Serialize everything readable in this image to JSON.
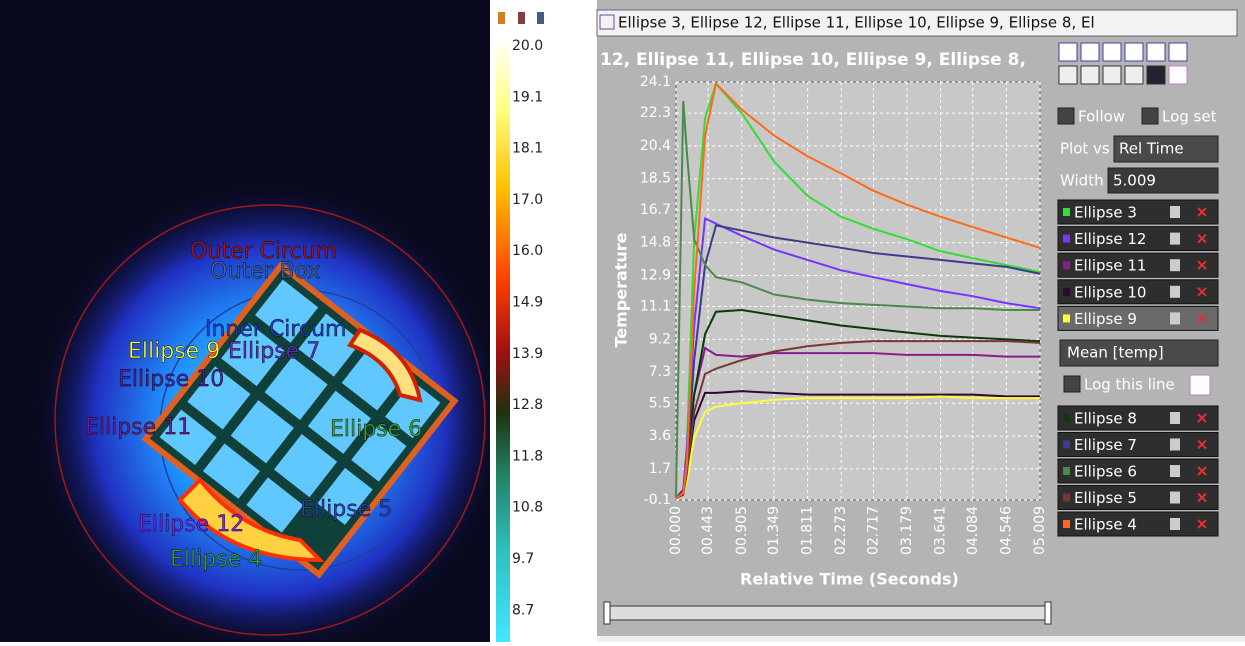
{
  "window": {
    "tab_title": "Ellipse 3, Ellipse 12, Ellipse 11, Ellipse 10, Ellipse 9, Ellipse 8, El"
  },
  "image": {
    "labels": [
      "Outer Circum",
      "Outer Box",
      "Inner Circum",
      "Ellipse 9",
      "Ellipse 7",
      "Ellipse 10",
      "Ellipse 11",
      "Ellipse 6",
      "Ellipse 5",
      "Ellipse 12",
      "Ellipse 4"
    ]
  },
  "colorbar": {
    "labels": [
      "20.0",
      "19.1",
      "18.1",
      "17.0",
      "16.0",
      "14.9",
      "13.9",
      "12.8",
      "11.8",
      "10.8",
      "9.7",
      "8.7"
    ]
  },
  "sidebar": {
    "follow": "Follow",
    "log_set": "Log set",
    "plot_vs": "Plot vs",
    "plot_vs_value": "Rel Time",
    "width": "Width",
    "width_value": "5.009",
    "statistic": "Mean [temp]",
    "log_line": "Log this line"
  },
  "chart_data": {
    "type": "line",
    "title": "12, Ellipse 11, Ellipse 10, Ellipse 9, Ellipse 8,",
    "x_label": "Relative Time (Seconds)",
    "y_label": "Temperature",
    "xlim": [
      0,
      5.009
    ],
    "ylim": [
      -0.1,
      24.1
    ],
    "xticks": [
      {
        "value": 0,
        "label": "00.000"
      },
      {
        "value": 0.443,
        "label": "00.443"
      },
      {
        "value": 0.905,
        "label": "00.905"
      },
      {
        "value": 1.349,
        "label": "01.349"
      },
      {
        "value": 1.811,
        "label": "01.811"
      },
      {
        "value": 2.273,
        "label": "02.273"
      },
      {
        "value": 2.717,
        "label": "02.717"
      },
      {
        "value": 3.179,
        "label": "03.179"
      },
      {
        "value": 3.641,
        "label": "03.641"
      },
      {
        "value": 4.084,
        "label": "04.084"
      },
      {
        "value": 4.546,
        "label": "04.546"
      },
      {
        "value": 5.009,
        "label": "05.009"
      }
    ],
    "yticks": [
      -0.1,
      1.7,
      3.6,
      5.5,
      7.3,
      9.2,
      11.1,
      12.9,
      14.8,
      16.7,
      18.5,
      20.4,
      22.3,
      24.1
    ],
    "grid": true,
    "x": [
      0,
      0.1,
      0.15,
      0.25,
      0.4,
      0.55,
      0.905,
      1.349,
      1.811,
      2.273,
      2.717,
      3.179,
      3.641,
      4.084,
      4.546,
      5.009
    ],
    "series": [
      {
        "name": "Ellipse 3",
        "color": "#33dd33",
        "values": [
          0,
          0.5,
          3,
          15,
          22,
          24,
          22.3,
          19.5,
          17.5,
          16.3,
          15.6,
          15,
          14.3,
          13.9,
          13.5,
          13.1
        ]
      },
      {
        "name": "Ellipse 12",
        "color": "#7a33ff",
        "values": [
          0,
          0.5,
          3,
          10,
          16.2,
          15.9,
          15.2,
          14.4,
          13.8,
          13.2,
          12.8,
          12.4,
          12,
          11.7,
          11.3,
          11
        ]
      },
      {
        "name": "Ellipse 11",
        "color": "#8b1c8b",
        "values": [
          0,
          0.5,
          2,
          6,
          8.7,
          8.3,
          8.2,
          8.4,
          8.4,
          8.4,
          8.4,
          8.3,
          8.3,
          8.3,
          8.2,
          8.2
        ]
      },
      {
        "name": "Ellipse 10",
        "color": "#2c0a30",
        "values": [
          0,
          0.3,
          1.5,
          4.5,
          6.1,
          6.1,
          6.2,
          6.1,
          6,
          6,
          6,
          6,
          6,
          6,
          5.9,
          5.9
        ]
      },
      {
        "name": "Ellipse 9",
        "color": "#ffff33",
        "values": [
          0,
          0.2,
          1,
          3.5,
          5,
          5.3,
          5.5,
          5.7,
          5.8,
          5.8,
          5.8,
          5.8,
          5.9,
          5.8,
          5.8,
          5.8
        ]
      },
      {
        "name": "Ellipse 8",
        "color": "#0a3a0a",
        "values": [
          0,
          0.3,
          1.5,
          6,
          9.5,
          10.8,
          10.9,
          10.6,
          10.3,
          10,
          9.8,
          9.6,
          9.4,
          9.3,
          9.2,
          9.1
        ]
      },
      {
        "name": "Ellipse 7",
        "color": "#3c3c8c",
        "values": [
          0,
          0.3,
          2,
          8,
          13.5,
          15.8,
          15.5,
          15.1,
          14.8,
          14.5,
          14.2,
          14,
          13.8,
          13.6,
          13.4,
          13
        ]
      },
      {
        "name": "Ellipse 6",
        "color": "#4a8a4a",
        "values": [
          0,
          23,
          20,
          15,
          13.5,
          12.8,
          12.5,
          11.8,
          11.5,
          11.3,
          11.2,
          11.1,
          11,
          11,
          10.9,
          10.9
        ]
      },
      {
        "name": "Ellipse 5",
        "color": "#7a3535",
        "values": [
          0,
          0.2,
          1.5,
          5,
          7.2,
          7.5,
          8,
          8.5,
          8.8,
          9,
          9.1,
          9.1,
          9.1,
          9.1,
          9.1,
          9
        ]
      },
      {
        "name": "Ellipse 4",
        "color": "#ff6a1a",
        "values": [
          0,
          0.3,
          2,
          12,
          21,
          24,
          22.5,
          21,
          19.8,
          18.8,
          17.8,
          17,
          16.3,
          15.7,
          15.1,
          14.5
        ]
      }
    ]
  }
}
